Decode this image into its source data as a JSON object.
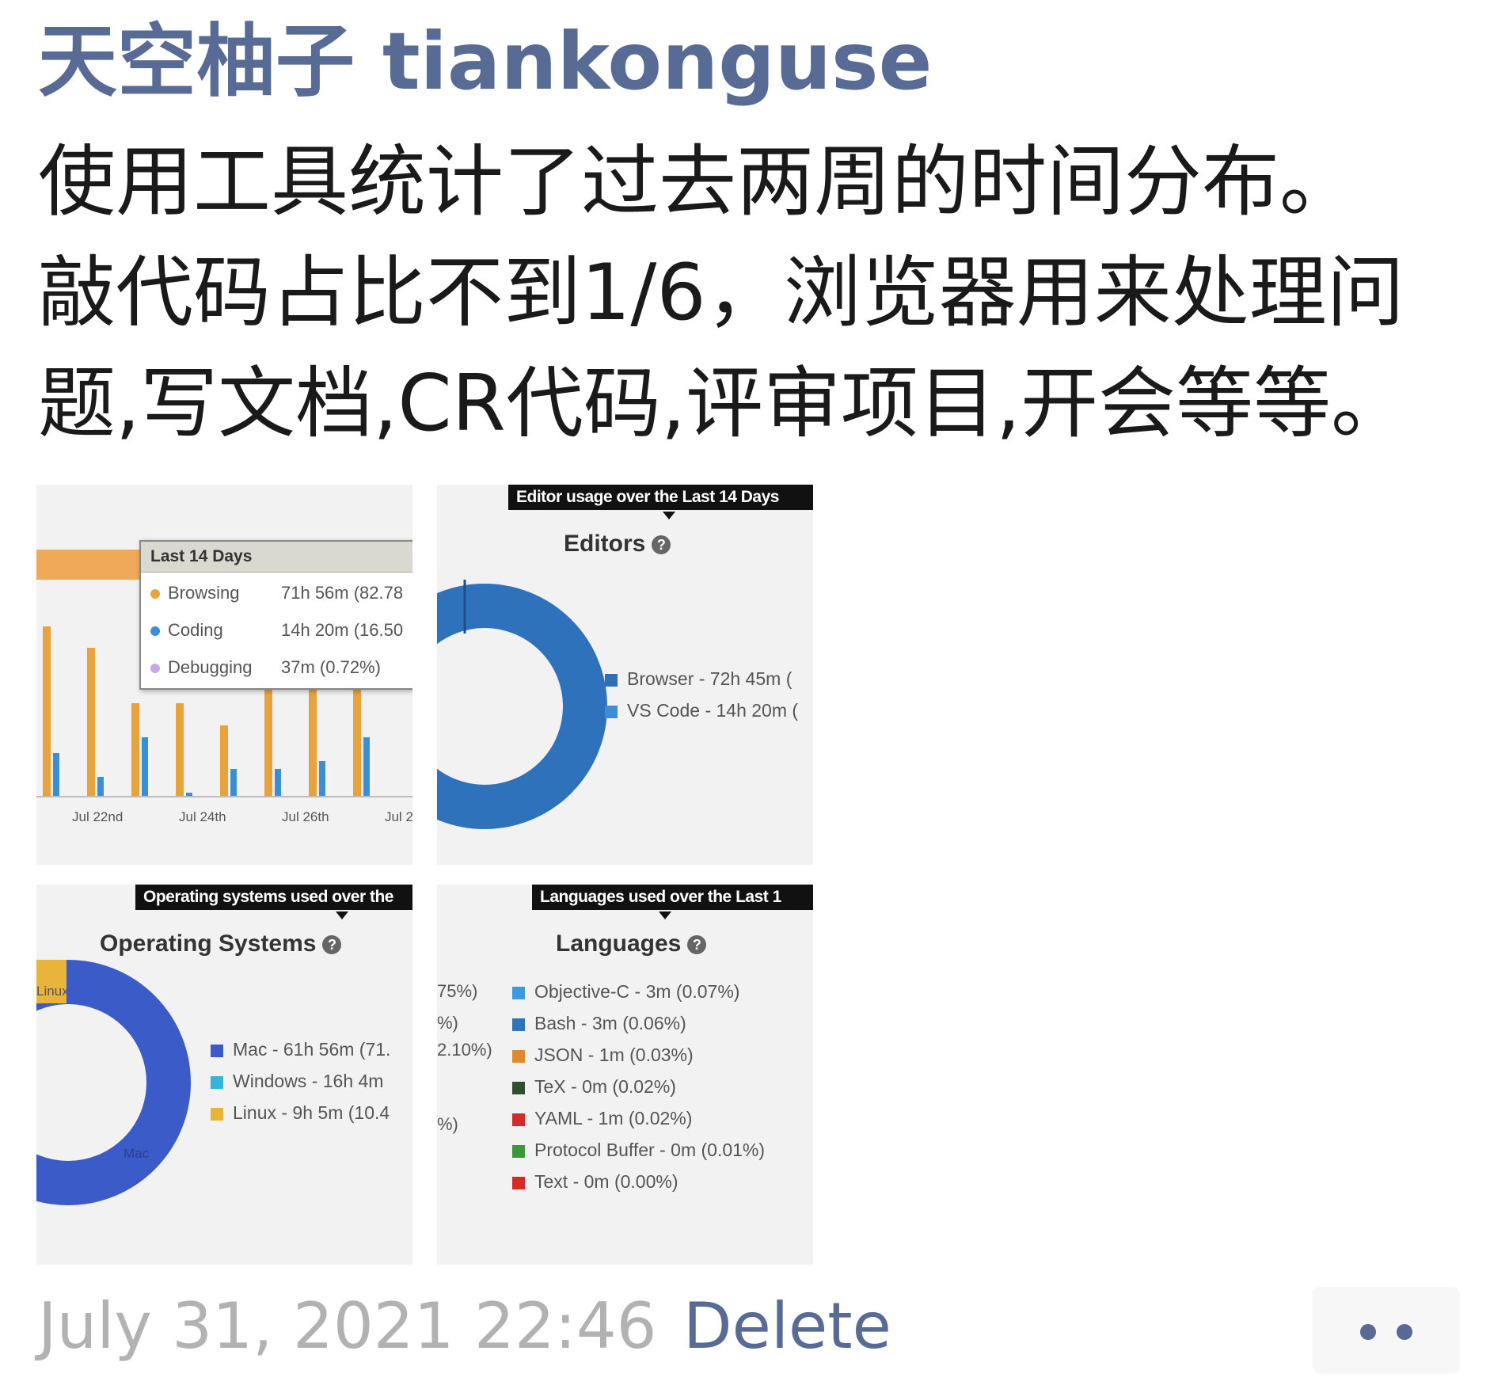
{
  "post": {
    "author": "天空柚子 tiankonguse",
    "text_lines": [
      "使用工具统计了过去两周的时间分布。",
      "敲代码占比不到1/6，浏览器用来处理问",
      "题,写文档,CR代码,评审项目,开会等等。"
    ]
  },
  "images": {
    "activity": {
      "popup_title": "Last 14 Days",
      "rows": [
        {
          "label": "Browsing",
          "value": "71h 56m (82.78",
          "color": "#e8a33c"
        },
        {
          "label": "Coding",
          "value": "14h 20m (16.50",
          "color": "#3a8fd6"
        },
        {
          "label": "Debugging",
          "value": "37m (0.72%)",
          "color": "#c9a8e6"
        }
      ],
      "x_ticks": [
        "Jul 22nd",
        "Jul 24th",
        "Jul 26th",
        "Jul 2"
      ]
    },
    "editors": {
      "tooltip": "Editor usage over the Last 14 Days",
      "title": "Editors",
      "legend": [
        {
          "label": "Browser - 72h 45m (",
          "color": "#2e6fb5"
        },
        {
          "label": "VS Code - 14h 20m (",
          "color": "#3d8ed8"
        }
      ]
    },
    "os": {
      "tooltip": "Operating systems used over the",
      "title": "Operating Systems",
      "donut_labels": [
        "Linux",
        "Mac"
      ],
      "legend": [
        {
          "label": "Mac - 61h 56m (71.",
          "color": "#3b5bc9"
        },
        {
          "label": "Windows - 16h 4m",
          "color": "#35b6d8"
        },
        {
          "label": "Linux - 9h 5m (10.4",
          "color": "#e8b43a"
        }
      ]
    },
    "languages": {
      "tooltip": "Languages used over the Last 1",
      "title": "Languages",
      "left_fragments": [
        "75%)",
        "%)",
        "2.10%)",
        "%)"
      ],
      "legend": [
        {
          "label": "Objective-C - 3m (0.07%)",
          "color": "#3b9ae0"
        },
        {
          "label": "Bash - 3m (0.06%)",
          "color": "#2f74b8"
        },
        {
          "label": "JSON - 1m (0.03%)",
          "color": "#e08a2e"
        },
        {
          "label": "TeX - 0m (0.02%)",
          "color": "#2f4f2f"
        },
        {
          "label": "YAML - 1m (0.02%)",
          "color": "#d62a2a"
        },
        {
          "label": "Protocol Buffer - 0m (0.01%)",
          "color": "#3a9a3a"
        },
        {
          "label": "Text - 0m (0.00%)",
          "color": "#d62a2a"
        }
      ]
    }
  },
  "footer": {
    "timestamp": "July 31, 2021 22:46",
    "delete_label": "Delete",
    "more_icon": "more-dots-icon"
  },
  "colors": {
    "link": "#576b95",
    "muted": "#b2b2b2"
  }
}
